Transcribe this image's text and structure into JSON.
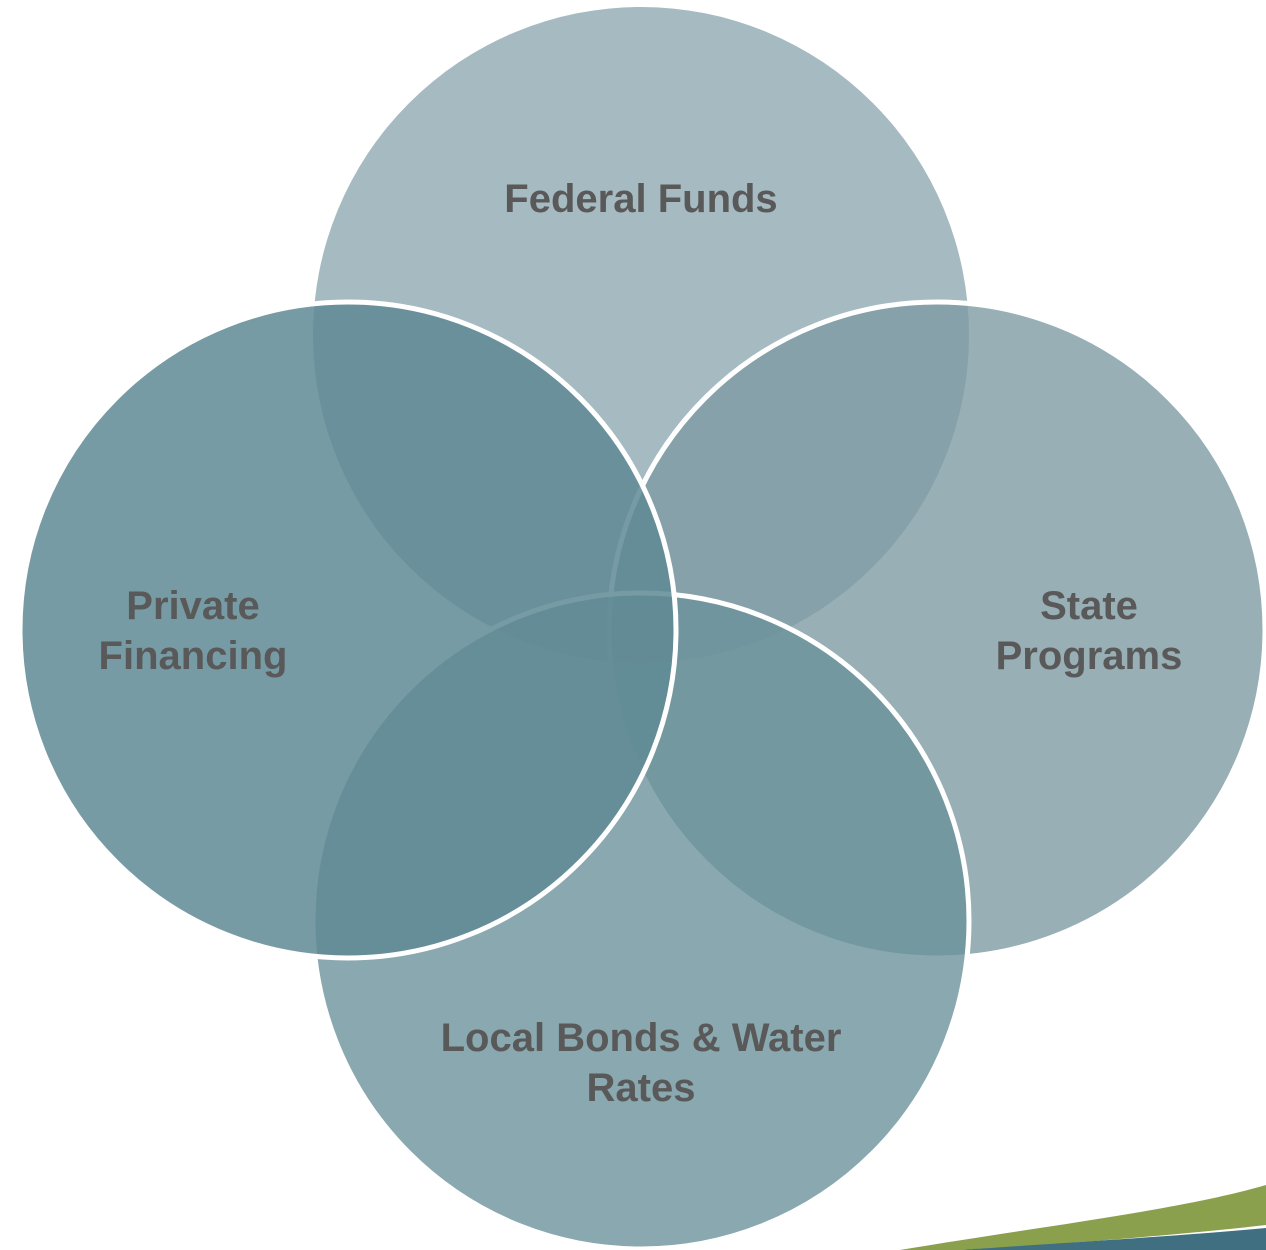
{
  "nodes": [
    {
      "lines": [
        "Federal Funds"
      ]
    },
    {
      "lines": [
        "State",
        "Programs"
      ]
    },
    {
      "lines": [
        "Local Bonds & Water",
        "Rates"
      ]
    },
    {
      "lines": [
        "Private",
        "Financing"
      ]
    }
  ]
}
